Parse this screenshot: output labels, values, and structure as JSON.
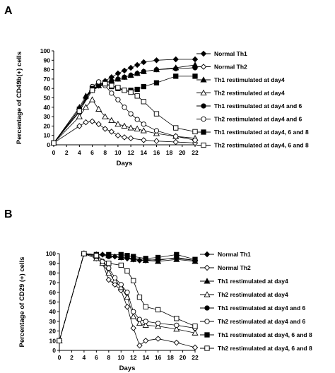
{
  "chart_data": [
    {
      "panel": "A",
      "type": "line",
      "xlabel": "Days",
      "ylabel": "Percentage of CD49b(+) cells",
      "xlim": [
        0,
        22
      ],
      "ylim": [
        0,
        100
      ],
      "xticks": [
        0,
        2,
        4,
        6,
        8,
        10,
        12,
        14,
        16,
        18,
        20,
        22
      ],
      "yticks": [
        0,
        10,
        20,
        30,
        40,
        50,
        60,
        70,
        80,
        90,
        100
      ],
      "grid": false,
      "legend_position": "right",
      "series": [
        {
          "name": "Normal Th1",
          "marker": "diamond",
          "filled": true,
          "x": [
            0,
            4,
            5,
            6,
            7,
            8,
            9,
            10,
            11,
            12,
            13,
            14,
            16,
            19,
            22
          ],
          "y": [
            2,
            38,
            50,
            58,
            63,
            68,
            72,
            76,
            79,
            82,
            85,
            88,
            90,
            91,
            91
          ]
        },
        {
          "name": "Normal Th2",
          "marker": "diamond",
          "filled": false,
          "x": [
            0,
            4,
            5,
            6,
            7,
            8,
            9,
            10,
            11,
            12,
            14,
            16,
            19,
            22
          ],
          "y": [
            2,
            20,
            24,
            25,
            22,
            17,
            14,
            10,
            8,
            7,
            5,
            4,
            3,
            2
          ]
        },
        {
          "name": "Th1 restimulated at day4",
          "marker": "triangle",
          "filled": true,
          "x": [
            0,
            4,
            5,
            6,
            7,
            8,
            9,
            10,
            11,
            12,
            13,
            14,
            16,
            19,
            22
          ],
          "y": [
            2,
            40,
            52,
            60,
            63,
            66,
            68,
            70,
            72,
            74,
            76,
            78,
            80,
            82,
            85
          ]
        },
        {
          "name": "Th2 restimulated at day4",
          "marker": "triangle",
          "filled": false,
          "x": [
            0,
            4,
            5,
            6,
            7,
            8,
            9,
            10,
            11,
            12,
            13,
            14,
            16,
            19,
            22
          ],
          "y": [
            2,
            30,
            40,
            48,
            38,
            30,
            26,
            22,
            20,
            18,
            17,
            15,
            12,
            9,
            7
          ]
        },
        {
          "name": "Th1 restimulated at day4 and 6",
          "marker": "circle",
          "filled": true,
          "x": [
            0,
            4,
            6,
            7,
            8,
            9,
            10,
            11,
            12,
            13,
            14,
            16,
            19,
            22
          ],
          "y": [
            2,
            38,
            62,
            65,
            66,
            68,
            70,
            72,
            74,
            76,
            78,
            80,
            81,
            82
          ]
        },
        {
          "name": "Th2 restimulated at day4 and 6",
          "marker": "circle",
          "filled": false,
          "x": [
            0,
            4,
            6,
            7,
            8,
            9,
            10,
            11,
            12,
            13,
            14,
            16,
            19,
            22
          ],
          "y": [
            2,
            35,
            62,
            67,
            63,
            55,
            48,
            40,
            33,
            27,
            22,
            15,
            9,
            5
          ]
        },
        {
          "name": "Th1 restimulated at day4, 6 and 8",
          "marker": "square",
          "filled": true,
          "x": [
            0,
            4,
            6,
            8,
            9,
            10,
            11,
            12,
            13,
            14,
            16,
            19,
            22
          ],
          "y": [
            2,
            38,
            60,
            65,
            62,
            60,
            58,
            58,
            59,
            62,
            66,
            73,
            73
          ]
        },
        {
          "name": "Th2 restimulated at day4, 6 and 8",
          "marker": "square",
          "filled": false,
          "x": [
            0,
            4,
            6,
            8,
            9,
            10,
            11,
            12,
            13,
            14,
            16,
            19,
            22
          ],
          "y": [
            2,
            36,
            58,
            65,
            63,
            61,
            58,
            56,
            52,
            46,
            33,
            18,
            14
          ]
        }
      ]
    },
    {
      "panel": "B",
      "type": "line",
      "xlabel": "Days",
      "ylabel": "Percentage of CD29 (+) cells",
      "xlim": [
        0,
        22
      ],
      "ylim": [
        0,
        100
      ],
      "xticks": [
        0,
        2,
        4,
        6,
        8,
        10,
        12,
        14,
        16,
        18,
        20,
        22
      ],
      "yticks": [
        0,
        10,
        20,
        30,
        40,
        50,
        60,
        70,
        80,
        90,
        100
      ],
      "grid": false,
      "legend_position": "right",
      "series": [
        {
          "name": "Normal Th1",
          "marker": "diamond",
          "filled": true,
          "x": [
            0,
            4,
            6,
            7,
            8,
            9,
            10,
            11,
            12,
            13,
            14,
            16,
            19,
            22
          ],
          "y": [
            10,
            100,
            99,
            99,
            98,
            97,
            96,
            95,
            94,
            93,
            93,
            94,
            95,
            93
          ]
        },
        {
          "name": "Normal Th2",
          "marker": "diamond",
          "filled": false,
          "x": [
            0,
            4,
            6,
            7,
            8,
            9,
            10,
            11,
            12,
            13,
            14,
            16,
            19,
            22
          ],
          "y": [
            10,
            100,
            95,
            90,
            73,
            68,
            62,
            45,
            23,
            5,
            10,
            12,
            8,
            3
          ]
        },
        {
          "name": "Th1 restimulated at day4",
          "marker": "triangle",
          "filled": true,
          "x": [
            0,
            4,
            6,
            8,
            10,
            12,
            14,
            16,
            19,
            22
          ],
          "y": [
            10,
            100,
            99,
            98,
            96,
            94,
            93,
            92,
            94,
            92
          ]
        },
        {
          "name": "Th2 restimulated at day4",
          "marker": "triangle",
          "filled": false,
          "x": [
            0,
            4,
            6,
            7,
            8,
            9,
            10,
            11,
            12,
            13,
            14,
            16,
            19,
            22
          ],
          "y": [
            10,
            100,
            95,
            90,
            80,
            72,
            65,
            55,
            35,
            28,
            26,
            25,
            22,
            18
          ]
        },
        {
          "name": "Th1 restimulated at day4 and 6",
          "marker": "circle",
          "filled": true,
          "x": [
            0,
            4,
            6,
            8,
            10,
            12,
            14,
            16,
            19,
            22
          ],
          "y": [
            10,
            100,
            99,
            97,
            96,
            95,
            94,
            93,
            96,
            93
          ]
        },
        {
          "name": "Th2 restimulated at day4 and 6",
          "marker": "circle",
          "filled": false,
          "x": [
            0,
            4,
            6,
            7,
            8,
            9,
            10,
            11,
            12,
            13,
            14,
            16,
            19,
            22
          ],
          "y": [
            10,
            100,
            97,
            92,
            85,
            75,
            68,
            60,
            40,
            32,
            30,
            28,
            26,
            23
          ]
        },
        {
          "name": "Th1 restimulated at day4, 6 and 8",
          "marker": "square",
          "filled": true,
          "x": [
            0,
            4,
            6,
            8,
            10,
            11,
            12,
            14,
            16,
            19,
            22
          ],
          "y": [
            10,
            100,
            99,
            99,
            99,
            98,
            97,
            95,
            96,
            99,
            94
          ]
        },
        {
          "name": "Th2 restimulated at day4, 6 and 8",
          "marker": "square",
          "filled": false,
          "x": [
            0,
            4,
            6,
            8,
            10,
            11,
            12,
            13,
            14,
            16,
            19,
            22
          ],
          "y": [
            10,
            100,
            98,
            90,
            88,
            82,
            72,
            55,
            45,
            42,
            33,
            25
          ]
        }
      ]
    }
  ]
}
